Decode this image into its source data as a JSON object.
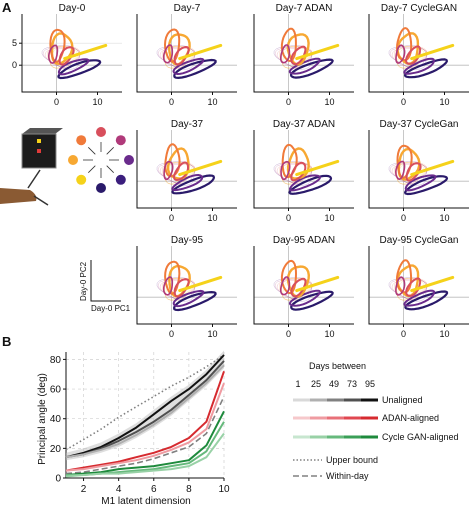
{
  "figure": {
    "panel_a_label": "A",
    "panel_b_label": "B",
    "pca_axes": {
      "y_ticks": [
        "5",
        "0"
      ],
      "x_ticks": [
        "0",
        "10"
      ],
      "axis_y_label": "Day-0 PC2",
      "axis_x_label": "Day-0 PC1"
    },
    "panels": [
      {
        "title": "Day-0"
      },
      {
        "title": "Day-7"
      },
      {
        "title": "Day-7 ADAN"
      },
      {
        "title": "Day-7 CycleGAN"
      },
      {
        "title": "Day-37"
      },
      {
        "title": "Day-37 ADAN"
      },
      {
        "title": "Day-37 CycleGan"
      },
      {
        "title": "Day-95"
      },
      {
        "title": "Day-95 ADAN"
      },
      {
        "title": "Day-95 CycleGan"
      }
    ],
    "target_colors": [
      "#f5d21a",
      "#f7a832",
      "#f07a3a",
      "#d84f5c",
      "#b03a7a",
      "#6a2b8c",
      "#3b1e7d",
      "#2a1a6a"
    ],
    "legend": {
      "title": "Days between",
      "ticks": [
        "1",
        "25",
        "49",
        "73",
        "95"
      ],
      "unaligned": "Unaligned",
      "adan": "ADAN-aligned",
      "cyclegan": "Cycle GAN-aligned",
      "upper": "Upper bound",
      "within": "Within-day",
      "unaligned_colors": [
        "#d9d9d9",
        "#b0b0b0",
        "#808080",
        "#505050",
        "#111111"
      ],
      "adan_colors": [
        "#f6c8cb",
        "#ef9ba1",
        "#e87078",
        "#e04750",
        "#d62a2f"
      ],
      "cyclegan_colors": [
        "#c7e6cf",
        "#98d1a6",
        "#66b97c",
        "#3a9f57",
        "#1e8a3c"
      ]
    }
  },
  "chart_data": {
    "type": "line",
    "title": "",
    "xlabel": "M1 latent dimension",
    "ylabel": "Principal angle (deg)",
    "xlim": [
      1,
      10
    ],
    "ylim": [
      0,
      85
    ],
    "x": [
      1,
      2,
      3,
      4,
      5,
      6,
      7,
      8,
      9,
      10
    ],
    "x_ticks": [
      "2",
      "4",
      "6",
      "8",
      "10"
    ],
    "y_ticks": [
      "0",
      "20",
      "40",
      "60",
      "80"
    ],
    "series": [
      {
        "name": "Upper bound",
        "color": "#808080",
        "dash": "dotted",
        "values": [
          19,
          26,
          33,
          41,
          48,
          55,
          62,
          68,
          75,
          83
        ]
      },
      {
        "name": "Unaligned",
        "color": "#111111",
        "values": [
          14,
          17,
          21,
          27,
          34,
          43,
          52,
          60,
          70,
          83
        ]
      },
      {
        "color": "#505050",
        "values": [
          14,
          16,
          20,
          25,
          31,
          38,
          46,
          56,
          66,
          79
        ]
      },
      {
        "color": "#b0b0b0",
        "values": [
          14,
          16,
          19,
          23,
          29,
          36,
          44,
          54,
          64,
          76
        ]
      },
      {
        "name": "ADAN-aligned",
        "color": "#d62a2f",
        "values": [
          5,
          7,
          9,
          11,
          14,
          17,
          21,
          27,
          38,
          72
        ]
      },
      {
        "color": "#ef9ba1",
        "values": [
          5,
          6,
          8,
          10,
          12,
          15,
          19,
          24,
          33,
          64
        ]
      },
      {
        "name": "Within-day",
        "color": "#808080",
        "dash": "dashed",
        "values": [
          3,
          4,
          6,
          8,
          10,
          13,
          17,
          21,
          30,
          55
        ]
      },
      {
        "name": "Cycle GAN-aligned",
        "color": "#1e8a3c",
        "values": [
          2,
          3,
          4,
          6,
          7,
          8,
          10,
          12,
          22,
          45
        ]
      },
      {
        "color": "#66b97c",
        "values": [
          2,
          2,
          3,
          4,
          5,
          6,
          8,
          10,
          18,
          38
        ]
      },
      {
        "color": "#98d1a6",
        "values": [
          1,
          2,
          3,
          3,
          4,
          5,
          6,
          8,
          14,
          30
        ]
      }
    ]
  }
}
